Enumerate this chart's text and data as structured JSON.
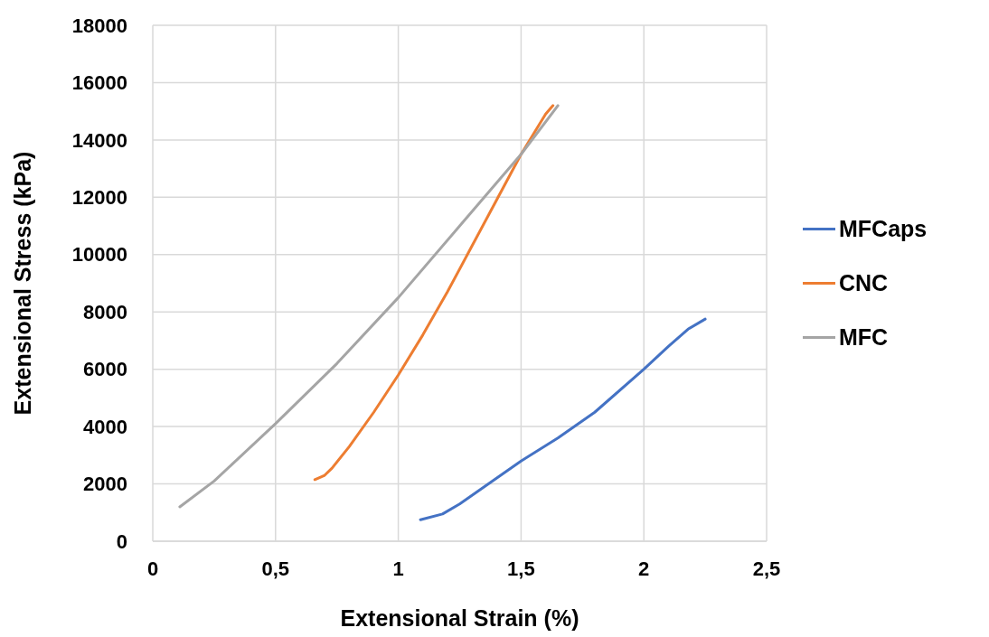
{
  "chart_data": {
    "type": "line",
    "xlabel": "Extensional Strain (%)",
    "ylabel": "Extensional Stress (kPa)",
    "xlim": [
      0,
      2.5
    ],
    "xticks": [
      0,
      {
        "value": 0.5,
        "label": "0,5"
      },
      1,
      {
        "value": 1.5,
        "label": "1,5"
      },
      2,
      {
        "value": 2.5,
        "label": "2,5"
      }
    ],
    "ylim": [
      0,
      18000
    ],
    "yticks": [
      0,
      2000,
      4000,
      6000,
      8000,
      10000,
      12000,
      14000,
      16000,
      18000
    ],
    "grid": true,
    "legend": "right",
    "marker": "none",
    "line_style": "solid",
    "series": [
      {
        "name": "MFCaps",
        "color": "#4472c4",
        "x": [
          1.09,
          1.18,
          1.25,
          1.35,
          1.5,
          1.65,
          1.8,
          2.0,
          2.1,
          2.18,
          2.25
        ],
        "values": [
          750,
          950,
          1300,
          1900,
          2800,
          3600,
          4500,
          6000,
          6800,
          7400,
          7750
        ]
      },
      {
        "name": "CNC",
        "color": "#ed7d31",
        "x": [
          0.66,
          0.7,
          0.73,
          0.8,
          0.9,
          1.0,
          1.1,
          1.2,
          1.3,
          1.4,
          1.5,
          1.6,
          1.63
        ],
        "values": [
          2150,
          2300,
          2550,
          3300,
          4500,
          5800,
          7200,
          8700,
          10300,
          11900,
          13500,
          14900,
          15200
        ]
      },
      {
        "name": "MFC",
        "color": "#a5a5a5",
        "x": [
          0.11,
          0.25,
          0.5,
          0.75,
          1.0,
          1.25,
          1.5,
          1.65
        ],
        "values": [
          1200,
          2100,
          4100,
          6200,
          8500,
          11000,
          13500,
          15200
        ]
      }
    ]
  }
}
